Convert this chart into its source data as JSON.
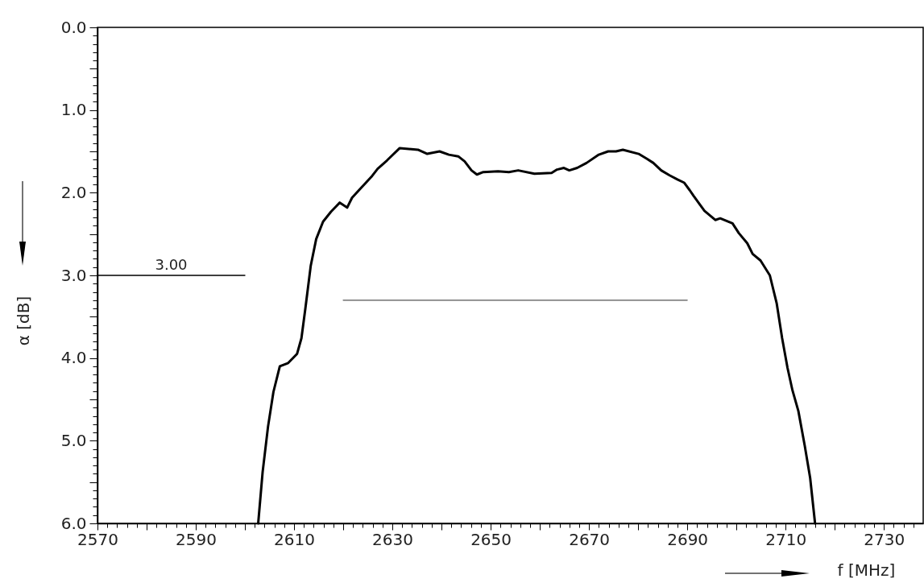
{
  "chart_data": {
    "type": "line",
    "xlabel": "f  [MHz]",
    "ylabel": "α  [dB]",
    "xlim": [
      2570,
      2738
    ],
    "ylim": [
      6,
      0
    ],
    "xticks": [
      2570,
      {
        "value": 2572,
        "label": null
      },
      {
        "value": 2574,
        "label": null
      },
      {
        "value": 2576,
        "label": null
      },
      {
        "value": 2578,
        "label": null
      },
      {
        "value": 2580,
        "label": null
      },
      {
        "value": 2582,
        "label": null
      },
      {
        "value": 2584,
        "label": null
      },
      {
        "value": 2586,
        "label": null
      },
      {
        "value": 2588,
        "label": null
      },
      2590,
      {
        "value": 2592,
        "label": null
      },
      {
        "value": 2594,
        "label": null
      },
      {
        "value": 2596,
        "label": null
      },
      {
        "value": 2598,
        "label": null
      },
      {
        "value": 2600,
        "label": null
      },
      {
        "value": 2602,
        "label": null
      },
      {
        "value": 2604,
        "label": null
      },
      {
        "value": 2606,
        "label": null
      },
      {
        "value": 2608,
        "label": null
      },
      2610,
      {
        "value": 2612,
        "label": null
      },
      {
        "value": 2614,
        "label": null
      },
      {
        "value": 2616,
        "label": null
      },
      {
        "value": 2618,
        "label": null
      },
      {
        "value": 2620,
        "label": null
      },
      {
        "value": 2622,
        "label": null
      },
      {
        "value": 2624,
        "label": null
      },
      {
        "value": 2626,
        "label": null
      },
      {
        "value": 2628,
        "label": null
      },
      2630,
      {
        "value": 2632,
        "label": null
      },
      {
        "value": 2634,
        "label": null
      },
      {
        "value": 2636,
        "label": null
      },
      {
        "value": 2638,
        "label": null
      },
      {
        "value": 2640,
        "label": null
      },
      {
        "value": 2642,
        "label": null
      },
      {
        "value": 2644,
        "label": null
      },
      {
        "value": 2646,
        "label": null
      },
      {
        "value": 2648,
        "label": null
      },
      2650,
      {
        "value": 2652,
        "label": null
      },
      {
        "value": 2654,
        "label": null
      },
      {
        "value": 2656,
        "label": null
      },
      {
        "value": 2658,
        "label": null
      },
      {
        "value": 2660,
        "label": null
      },
      {
        "value": 2662,
        "label": null
      },
      {
        "value": 2664,
        "label": null
      },
      {
        "value": 2666,
        "label": null
      },
      {
        "value": 2668,
        "label": null
      },
      2670,
      {
        "value": 2672,
        "label": null
      },
      {
        "value": 2674,
        "label": null
      },
      {
        "value": 2676,
        "label": null
      },
      {
        "value": 2678,
        "label": null
      },
      {
        "value": 2680,
        "label": null
      },
      {
        "value": 2682,
        "label": null
      },
      {
        "value": 2684,
        "label": null
      },
      {
        "value": 2686,
        "label": null
      },
      {
        "value": 2688,
        "label": null
      },
      2690,
      {
        "value": 2692,
        "label": null
      },
      {
        "value": 2694,
        "label": null
      },
      {
        "value": 2696,
        "label": null
      },
      {
        "value": 2698,
        "label": null
      },
      {
        "value": 2700,
        "label": null
      },
      {
        "value": 2702,
        "label": null
      },
      {
        "value": 2704,
        "label": null
      },
      {
        "value": 2706,
        "label": null
      },
      {
        "value": 2708,
        "label": null
      },
      2710,
      {
        "value": 2712,
        "label": null
      },
      {
        "value": 2714,
        "label": null
      },
      {
        "value": 2716,
        "label": null
      },
      {
        "value": 2718,
        "label": null
      },
      {
        "value": 2720,
        "label": null
      },
      {
        "value": 2722,
        "label": null
      },
      {
        "value": 2724,
        "label": null
      },
      {
        "value": 2726,
        "label": null
      },
      {
        "value": 2728,
        "label": null
      },
      2730,
      {
        "value": 2732,
        "label": null
      },
      {
        "value": 2734,
        "label": null
      },
      {
        "value": 2736,
        "label": null
      }
    ],
    "yticks": [
      {
        "value": 0,
        "label": "0.0"
      },
      {
        "value": 0.1,
        "label": null
      },
      {
        "value": 0.2,
        "label": null
      },
      {
        "value": 0.3,
        "label": null
      },
      {
        "value": 0.4,
        "label": null
      },
      {
        "value": 0.5,
        "label": null
      },
      {
        "value": 0.6,
        "label": null
      },
      {
        "value": 0.7,
        "label": null
      },
      {
        "value": 0.8,
        "label": null
      },
      {
        "value": 0.9,
        "label": null
      },
      {
        "value": 1,
        "label": "1.0"
      },
      {
        "value": 1.1,
        "label": null
      },
      {
        "value": 1.2,
        "label": null
      },
      {
        "value": 1.3,
        "label": null
      },
      {
        "value": 1.4,
        "label": null
      },
      {
        "value": 1.5,
        "label": null
      },
      {
        "value": 1.6,
        "label": null
      },
      {
        "value": 1.7,
        "label": null
      },
      {
        "value": 1.8,
        "label": null
      },
      {
        "value": 1.9,
        "label": null
      },
      {
        "value": 2,
        "label": "2.0"
      },
      {
        "value": 2.1,
        "label": null
      },
      {
        "value": 2.2,
        "label": null
      },
      {
        "value": 2.3,
        "label": null
      },
      {
        "value": 2.4,
        "label": null
      },
      {
        "value": 2.5,
        "label": null
      },
      {
        "value": 2.6,
        "label": null
      },
      {
        "value": 2.7,
        "label": null
      },
      {
        "value": 2.8,
        "label": null
      },
      {
        "value": 2.9,
        "label": null
      },
      {
        "value": 3,
        "label": "3.0"
      },
      {
        "value": 3.1,
        "label": null
      },
      {
        "value": 3.2,
        "label": null
      },
      {
        "value": 3.3,
        "label": null
      },
      {
        "value": 3.4,
        "label": null
      },
      {
        "value": 3.5,
        "label": null
      },
      {
        "value": 3.6,
        "label": null
      },
      {
        "value": 3.7,
        "label": null
      },
      {
        "value": 3.8,
        "label": null
      },
      {
        "value": 3.9,
        "label": null
      },
      {
        "value": 4,
        "label": "4.0"
      },
      {
        "value": 4.1,
        "label": null
      },
      {
        "value": 4.2,
        "label": null
      },
      {
        "value": 4.3,
        "label": null
      },
      {
        "value": 4.4,
        "label": null
      },
      {
        "value": 4.5,
        "label": null
      },
      {
        "value": 4.6,
        "label": null
      },
      {
        "value": 4.7,
        "label": null
      },
      {
        "value": 4.8,
        "label": null
      },
      {
        "value": 4.9,
        "label": null
      },
      {
        "value": 5,
        "label": "5.0"
      },
      {
        "value": 5.1,
        "label": null
      },
      {
        "value": 5.2,
        "label": null
      },
      {
        "value": 5.3,
        "label": null
      },
      {
        "value": 5.4,
        "label": null
      },
      {
        "value": 5.5,
        "label": null
      },
      {
        "value": 5.6,
        "label": null
      },
      {
        "value": 5.7,
        "label": null
      },
      {
        "value": 5.8,
        "label": null
      },
      {
        "value": 5.9,
        "label": null
      },
      {
        "value": 6,
        "label": "6.0"
      }
    ],
    "series": [
      {
        "color": "#000000",
        "x": [
          2602.7,
          2603.6,
          2604.7,
          2605.8,
          2607.1,
          2608.8,
          2610.6,
          2611.5,
          2612.3,
          2613.4,
          2614.5,
          2615.9,
          2617.5,
          2619.3,
          2620.8,
          2621.8,
          2623.8,
          2625.7,
          2627.0,
          2628.9,
          2631.5,
          2635.2,
          2637.1,
          2639.6,
          2641.5,
          2643.4,
          2644.7,
          2646.1,
          2647.2,
          2648.5,
          2651.5,
          2653.7,
          2655.6,
          2658.9,
          2662.4,
          2663.5,
          2664.9,
          2666.0,
          2667.6,
          2669.5,
          2672.0,
          2673.9,
          2675.5,
          2676.9,
          2680.1,
          2681.8,
          2683.1,
          2684.7,
          2686.4,
          2688.0,
          2689.4,
          2690.5,
          2691.3,
          2693.5,
          2695.7,
          2696.7,
          2699.2,
          2700.5,
          2702.2,
          2703.3,
          2704.9,
          2706.8,
          2708.2,
          2709.3,
          2710.4,
          2711.4,
          2712.6,
          2713.9,
          2715.0,
          2716.0
        ],
        "values": [
          6.0,
          5.38,
          4.83,
          4.41,
          4.1,
          4.06,
          3.95,
          3.76,
          3.4,
          2.88,
          2.56,
          2.35,
          2.23,
          2.12,
          2.18,
          2.06,
          1.93,
          1.81,
          1.71,
          1.61,
          1.46,
          1.48,
          1.53,
          1.5,
          1.54,
          1.56,
          1.62,
          1.73,
          1.78,
          1.75,
          1.74,
          1.75,
          1.73,
          1.77,
          1.76,
          1.72,
          1.7,
          1.73,
          1.7,
          1.64,
          1.54,
          1.5,
          1.5,
          1.48,
          1.53,
          1.59,
          1.64,
          1.73,
          1.79,
          1.84,
          1.88,
          1.97,
          2.04,
          2.22,
          2.33,
          2.31,
          2.37,
          2.49,
          2.61,
          2.74,
          2.82,
          3.0,
          3.34,
          3.76,
          4.12,
          4.39,
          4.64,
          5.06,
          5.45,
          6.0
        ]
      },
      {
        "color": "#000000",
        "x": [
          2570,
          2600
        ],
        "values": [
          3.0,
          3.0
        ]
      },
      {
        "color": "#555555",
        "x": [
          2620,
          2690
        ],
        "values": [
          3.3,
          3.3
        ]
      }
    ],
    "annotations": [
      {
        "text": "3.00",
        "x": 2585,
        "y": 3.0
      }
    ]
  }
}
